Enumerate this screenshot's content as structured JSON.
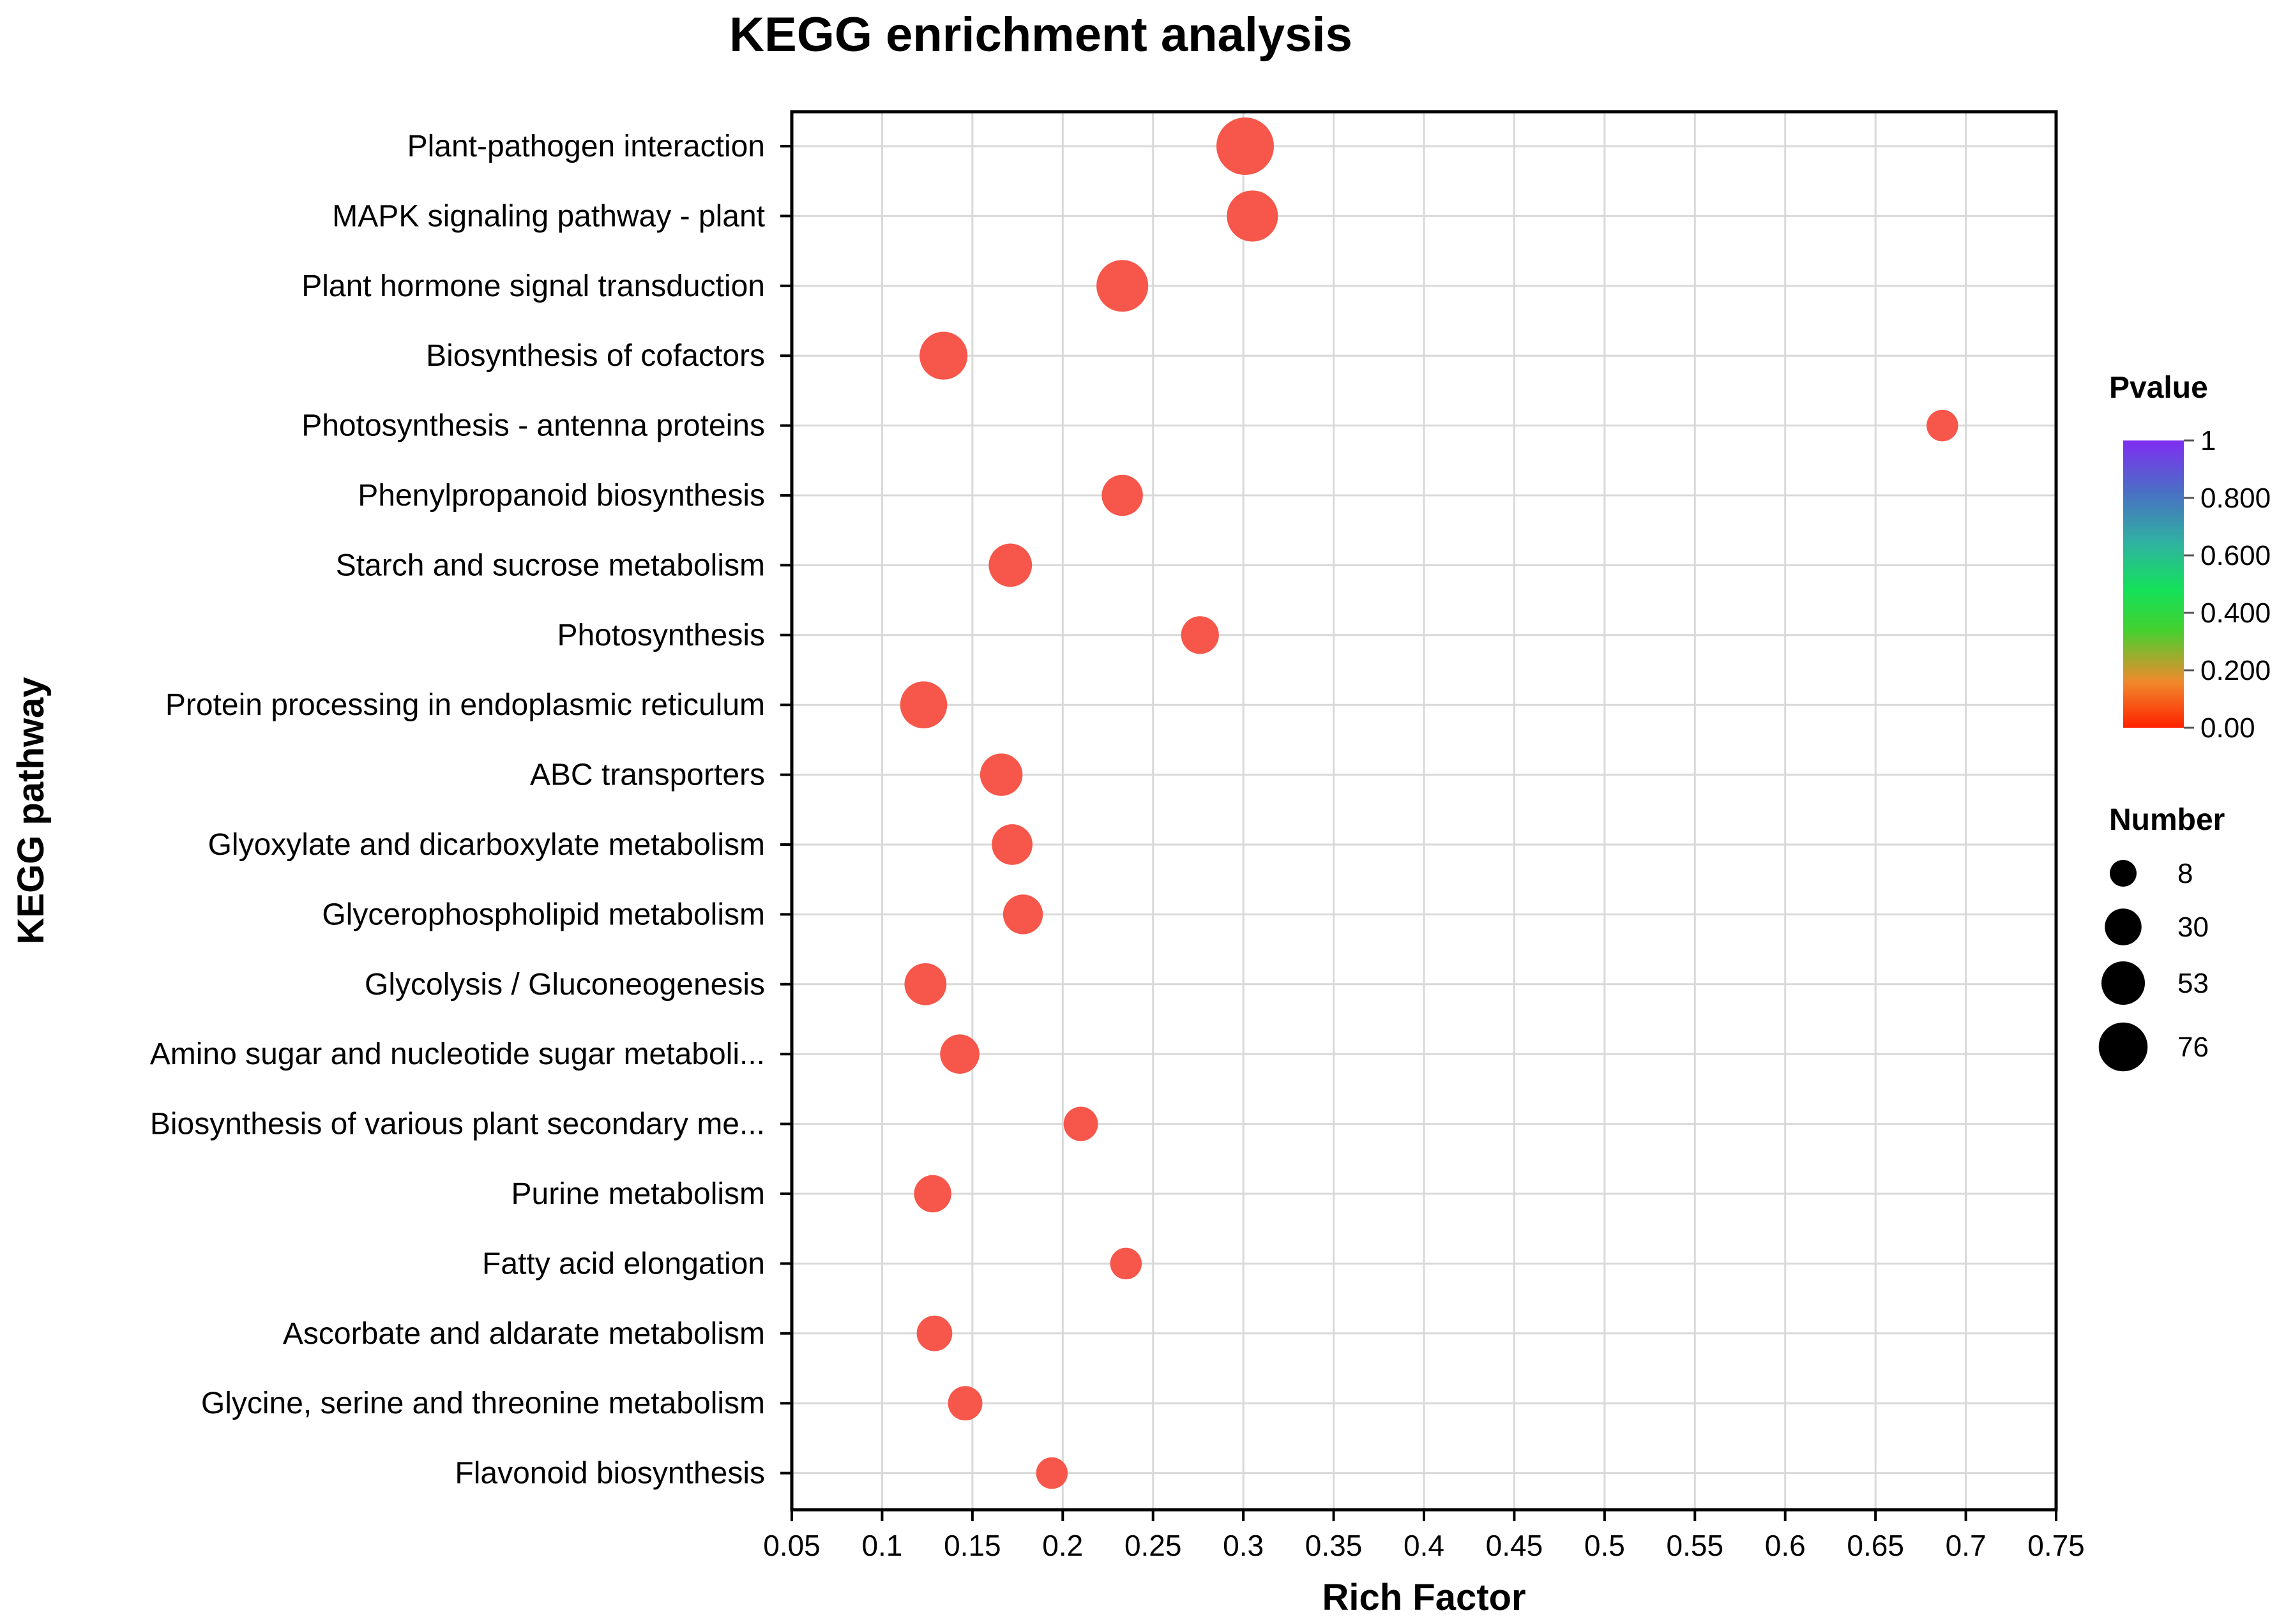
{
  "chart_data": {
    "type": "scatter",
    "title": "KEGG enrichment analysis",
    "xlabel": "Rich Factor",
    "ylabel": "KEGG pathway",
    "xlim": [
      0.05,
      0.75
    ],
    "x_ticks": [
      "0.05",
      "0.1",
      "0.15",
      "0.2",
      "0.25",
      "0.3",
      "0.35",
      "0.4",
      "0.45",
      "0.5",
      "0.55",
      "0.6",
      "0.65",
      "0.7",
      "0.75"
    ],
    "grid": true,
    "point_color": "#f7564a",
    "categories": [
      "Plant-pathogen interaction",
      "MAPK signaling pathway - plant",
      "Plant hormone signal transduction",
      "Biosynthesis of cofactors",
      "Photosynthesis - antenna proteins",
      "Phenylpropanoid biosynthesis",
      "Starch and sucrose metabolism",
      "Photosynthesis",
      "Protein processing in endoplasmic reticulum",
      "ABC transporters",
      "Glyoxylate and dicarboxylate metabolism",
      "Glycerophospholipid metabolism",
      "Glycolysis / Gluconeogenesis",
      "Amino sugar and nucleotide sugar metaboli...",
      "Biosynthesis of various plant secondary me...",
      "Purine metabolism",
      "Fatty acid elongation",
      "Ascorbate and aldarate metabolism",
      "Glycine, serine and threonine metabolism",
      "Flavonoid biosynthesis"
    ],
    "rich_factor": [
      0.301,
      0.305,
      0.233,
      0.134,
      0.687,
      0.233,
      0.171,
      0.276,
      0.123,
      0.166,
      0.172,
      0.178,
      0.124,
      0.143,
      0.21,
      0.128,
      0.235,
      0.129,
      0.146,
      0.194
    ],
    "number": [
      76,
      53,
      55,
      43,
      8,
      25,
      30,
      18,
      40,
      28,
      24,
      22,
      27,
      21,
      12,
      17,
      8,
      14,
      12,
      8
    ],
    "pvalue": [
      0.0,
      0.0,
      0.0,
      0.0,
      0.0,
      0.0,
      0.0,
      0.0,
      0.0,
      0.0,
      0.0,
      0.0,
      0.0,
      0.0,
      0.0,
      0.0,
      0.0,
      0.0,
      0.0,
      0.0
    ],
    "legend_pvalue": {
      "title": "Pvalue",
      "ticks": [
        "1",
        "0.800",
        "0.600",
        "0.400",
        "0.200",
        "0.00"
      ],
      "colors": [
        "#ff2200",
        "#f08a2c",
        "#44d130",
        "#14e15a",
        "#2fb3a0",
        "#4a6fc4",
        "#7f2ef2"
      ]
    },
    "legend_number": {
      "title": "Number",
      "values": [
        8,
        30,
        53,
        76
      ],
      "labels": [
        "8",
        "30",
        "53",
        "76"
      ]
    }
  }
}
